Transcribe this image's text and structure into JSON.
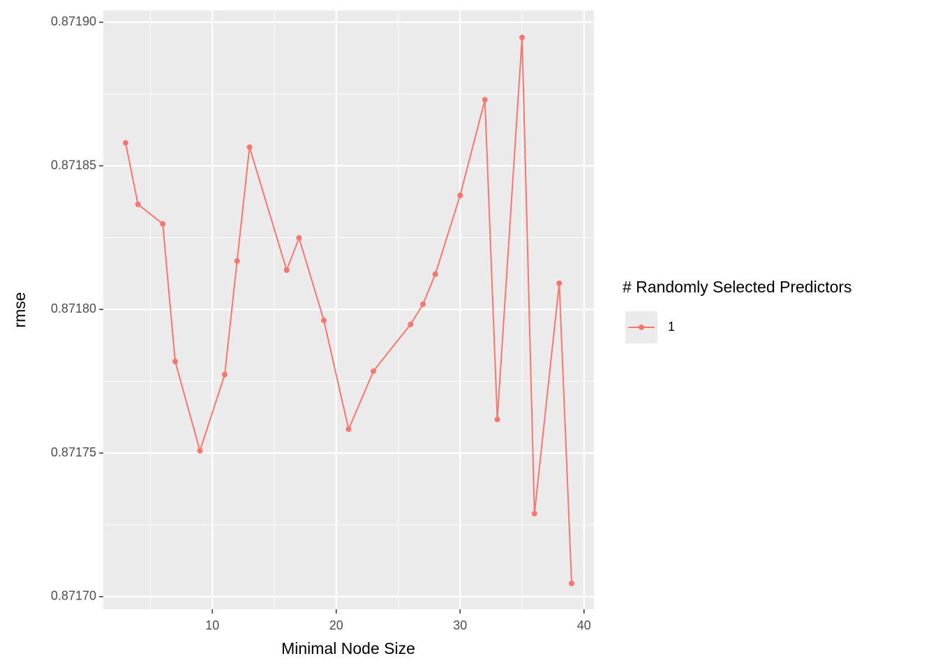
{
  "chart_data": {
    "type": "line",
    "x_label": "Minimal Node Size",
    "y_label": "rmse",
    "legend_title": "# Randomly Selected Predictors",
    "legend_position": "right",
    "grid": true,
    "x": [
      3,
      4,
      6,
      7,
      9,
      11,
      12,
      13,
      16,
      17,
      19,
      21,
      23,
      26,
      27,
      28,
      30,
      32,
      33,
      35,
      36,
      38,
      39
    ],
    "series": [
      {
        "name": "1",
        "color": "#f8766d",
        "values": [
          0.871858,
          0.8718366,
          0.8718298,
          0.8717819,
          0.8717508,
          0.8717773,
          0.8718169,
          0.8718565,
          0.8718137,
          0.8718249,
          0.8717962,
          0.8717583,
          0.8717785,
          0.8717948,
          0.8718018,
          0.8718123,
          0.8718397,
          0.871873,
          0.8717617,
          0.8718947,
          0.8717289,
          0.8718091,
          0.8717046
        ]
      }
    ],
    "xlim": [
      1.2,
      40.8
    ],
    "xticks": [
      10,
      20,
      30,
      40
    ],
    "ylim": [
      0.8716956,
      0.8719041
    ],
    "yticks": [
      {
        "value": 0.8717,
        "label": "0.87170"
      },
      {
        "value": 0.87175,
        "label": "0.87175"
      },
      {
        "value": 0.8718,
        "label": "0.87180"
      },
      {
        "value": 0.87185,
        "label": "0.87185"
      },
      {
        "value": 0.8719,
        "label": "0.87190"
      }
    ]
  }
}
